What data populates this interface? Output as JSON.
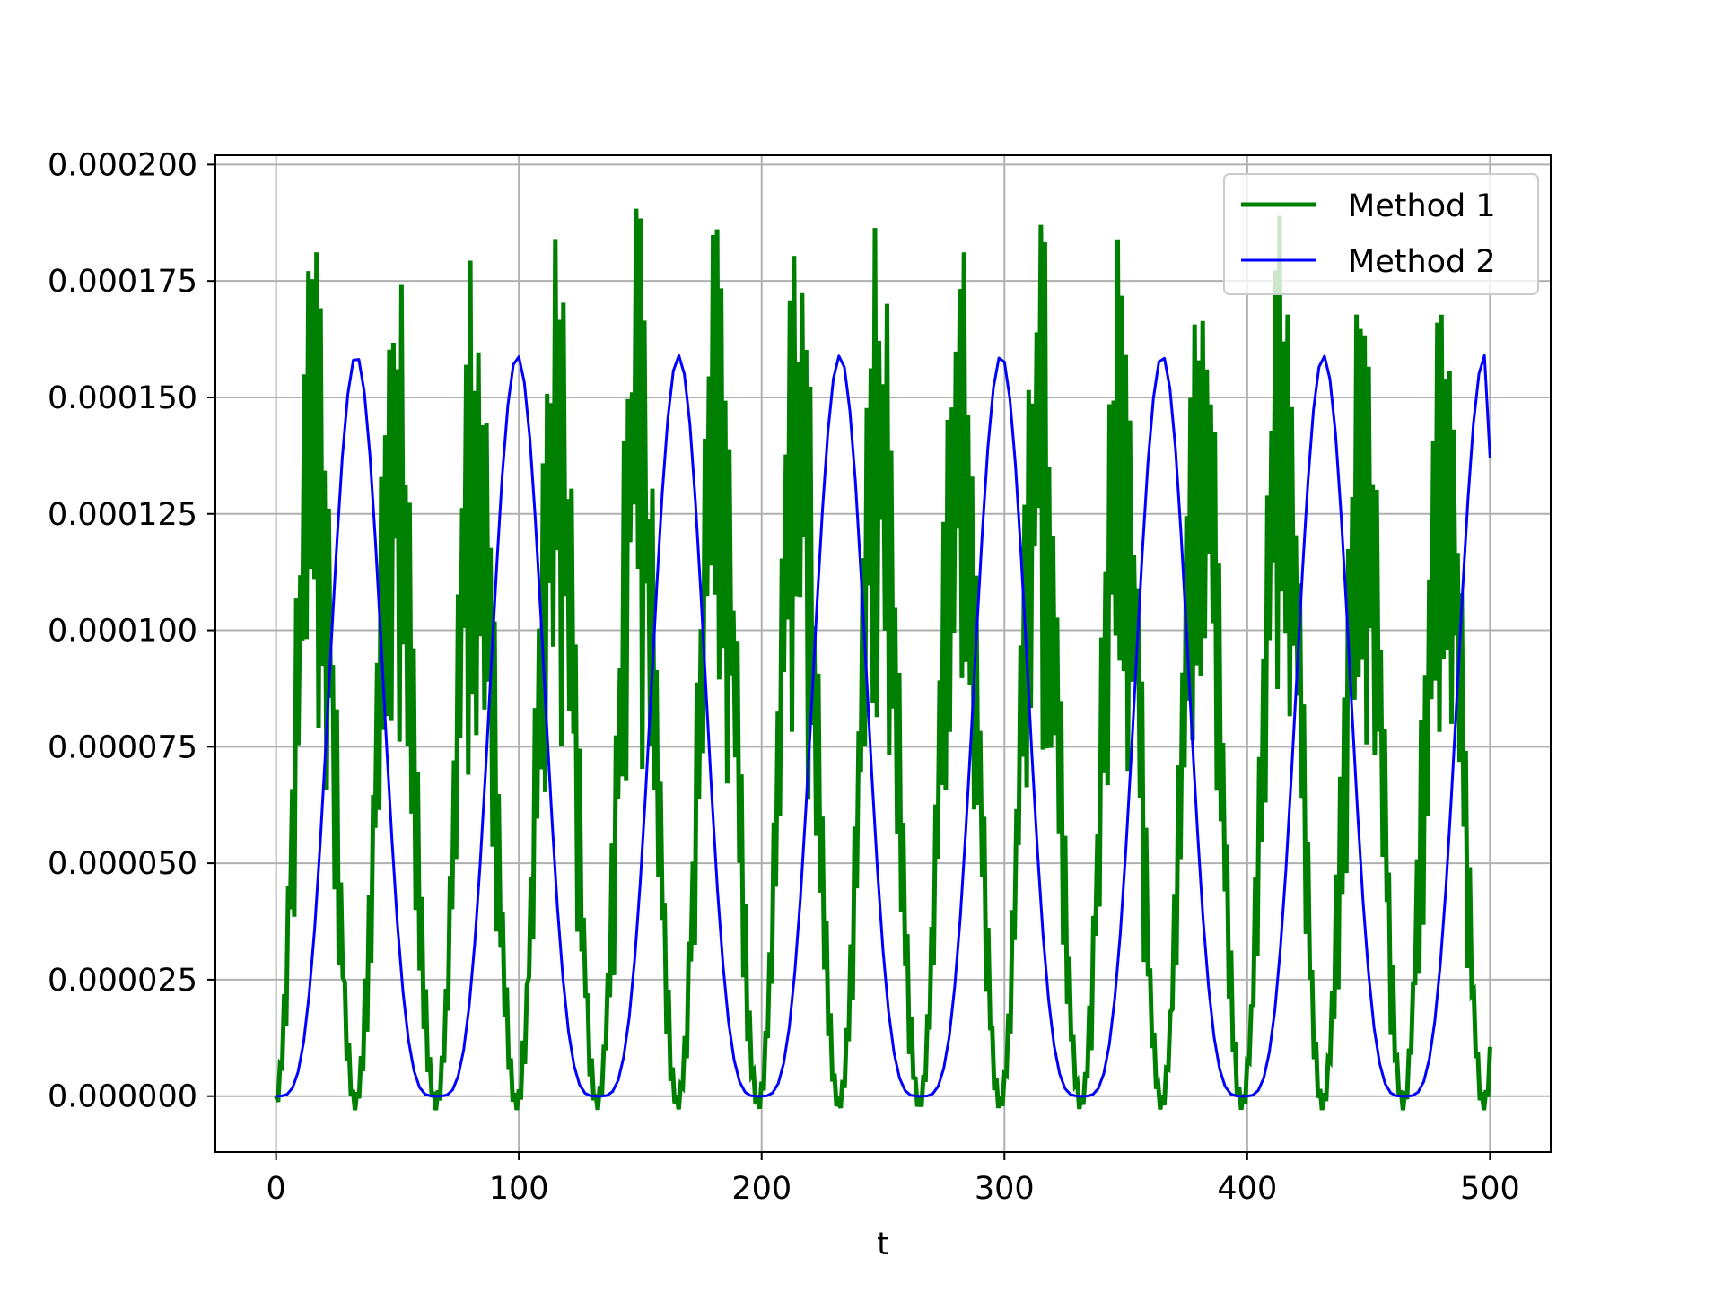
{
  "chart_data": {
    "type": "line",
    "title": "",
    "xlabel": "t",
    "ylabel": "",
    "xlim": [
      -25,
      525
    ],
    "ylim": [
      -1.2e-05,
      0.000202
    ],
    "xticks": [
      0,
      100,
      200,
      300,
      400,
      500
    ],
    "xtick_labels": [
      "0",
      "100",
      "200",
      "300",
      "400",
      "500"
    ],
    "yticks": [
      0,
      2.5e-05,
      5e-05,
      7.5e-05,
      0.0001,
      0.000125,
      0.00015,
      0.000175,
      0.0002
    ],
    "ytick_labels": [
      "0.000000",
      "0.000025",
      "0.000050",
      "0.000075",
      "0.000100",
      "0.000125",
      "0.000150",
      "0.000175",
      "0.000200"
    ],
    "grid": true,
    "legend_position": "top-right",
    "series": [
      {
        "name": "Method 1",
        "color": "#008000",
        "line_width": 5,
        "style": "oscillating",
        "x_range": [
          0,
          500
        ],
        "period": 33.2,
        "peak": 0.000192,
        "peak_times": [
          16,
          49,
          82,
          115,
          148,
          182,
          215,
          248,
          281,
          314,
          347,
          380,
          413,
          446,
          479
        ]
      },
      {
        "name": "Method 2",
        "color": "#0000ff",
        "line_width": 3,
        "style": "smooth",
        "x_range": [
          0,
          500
        ],
        "period": 66.4,
        "peak": 0.000159,
        "peak_times": [
          33,
          99,
          166,
          232,
          298,
          365,
          431,
          497
        ],
        "end_value": 0.000137
      }
    ]
  }
}
